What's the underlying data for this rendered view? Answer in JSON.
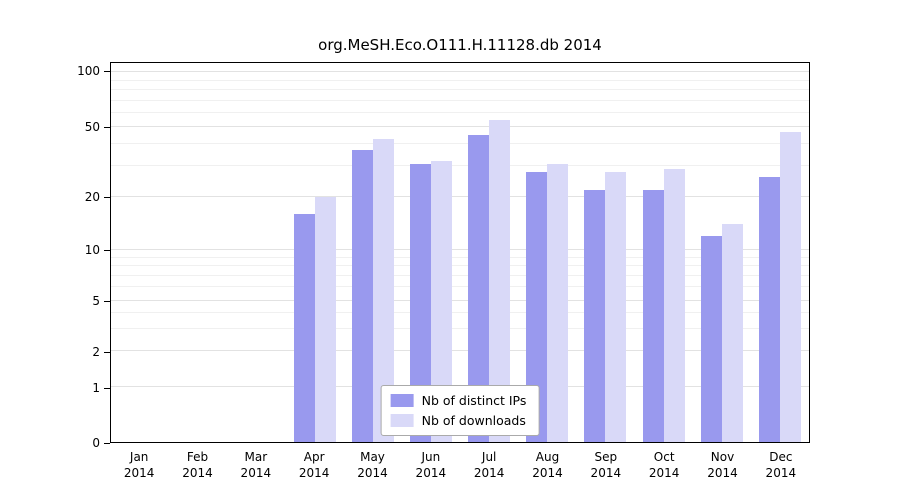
{
  "chart_data": {
    "type": "bar",
    "title": "org.MeSH.Eco.O111.H.11128.db 2014",
    "categories": [
      "Jan",
      "Feb",
      "Mar",
      "Apr",
      "May",
      "Jun",
      "Jul",
      "Aug",
      "Sep",
      "Oct",
      "Nov",
      "Dec"
    ],
    "year": "2014",
    "series": [
      {
        "name": "Nb of distinct IPs",
        "color": "#9999ee",
        "values": [
          0,
          0,
          0,
          16,
          37,
          31,
          45,
          28,
          22,
          22,
          12,
          26
        ]
      },
      {
        "name": "Nb of downloads",
        "color": "#d9d9f8",
        "values": [
          0,
          0,
          0,
          20,
          43,
          32,
          55,
          31,
          28,
          29,
          14,
          47
        ]
      }
    ],
    "y_ticks": [
      0,
      1,
      2,
      5,
      10,
      20,
      50,
      100
    ],
    "y_scale": "log",
    "ylim": [
      0,
      100
    ],
    "grid": true,
    "legend_position": "bottom-center-inside"
  }
}
